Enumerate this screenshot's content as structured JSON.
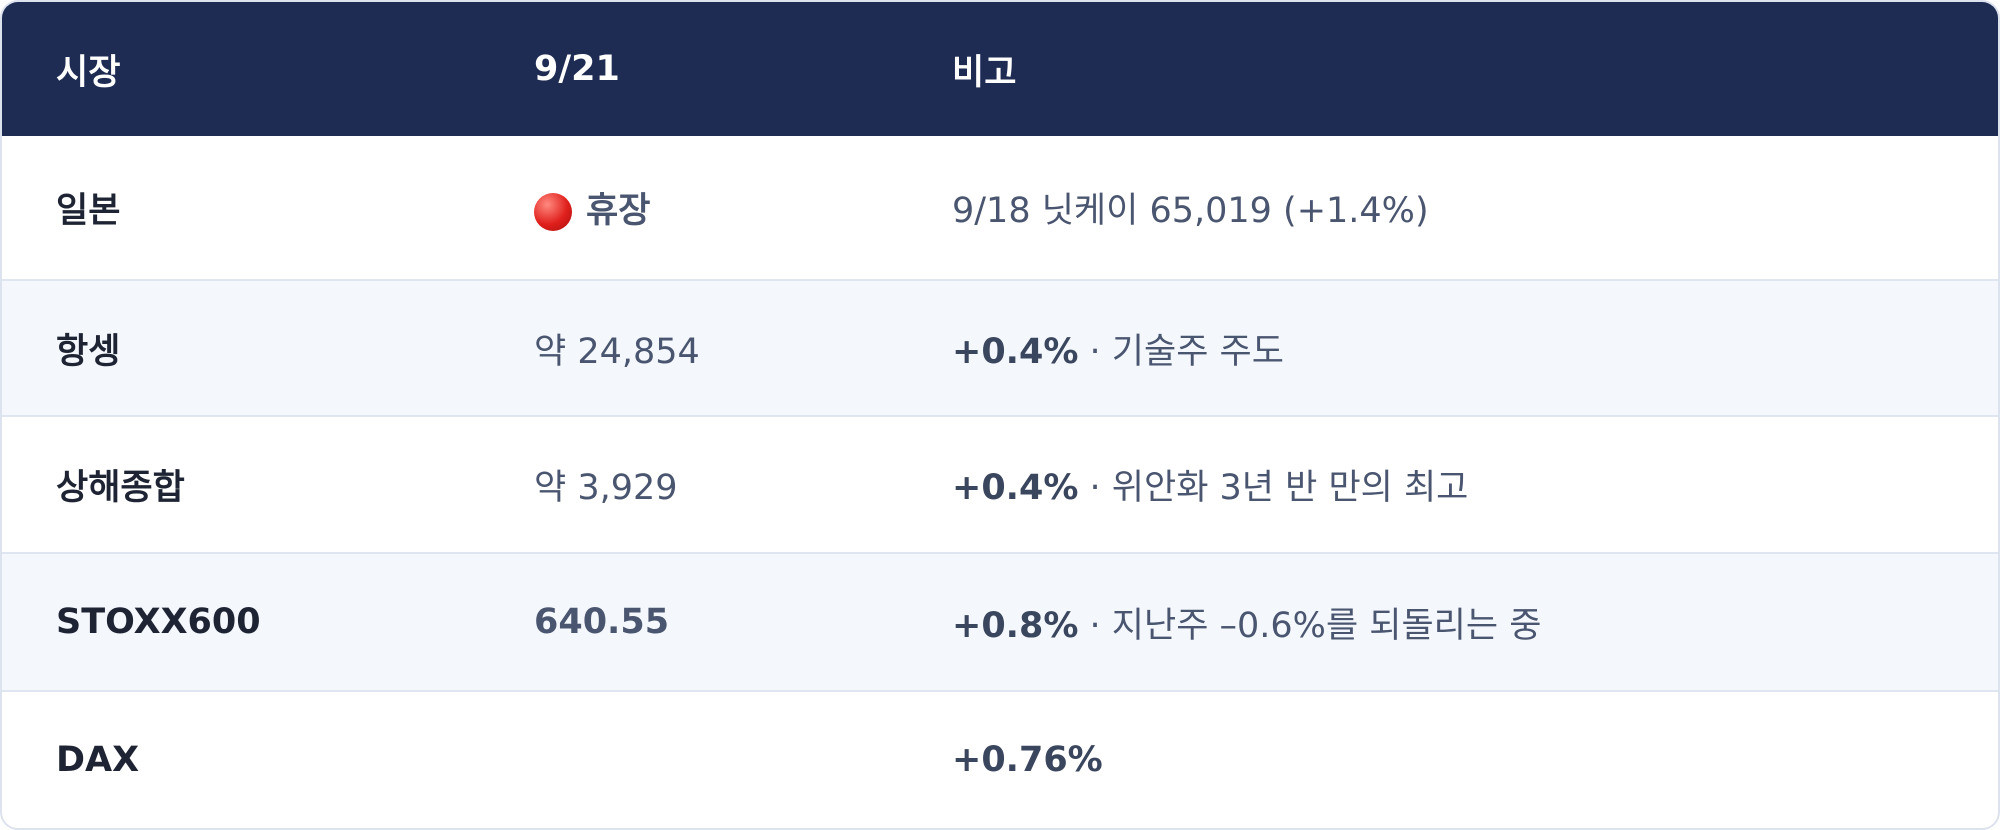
{
  "table": {
    "header": [
      "시장",
      "9/21",
      "비고"
    ],
    "rows": [
      {
        "market": "일본",
        "value": "휴장",
        "note": "9/18 닛케이 65,019 (+1.4%)"
      },
      {
        "market": "항셍",
        "value": "약 24,854",
        "change": "+0.4%",
        "note": "· 기술주 주도"
      },
      {
        "market": "상해종합",
        "value": "약 3,929",
        "change": "+0.4%",
        "note": "· 위안화 3년 반 만의 최고"
      },
      {
        "market": "STOXX600",
        "value": "640.55",
        "change": "+0.8%",
        "note": "· 지난주 –0.6%를 되돌리는 중"
      },
      {
        "market": "DAX",
        "change": "+0.76%"
      }
    ]
  }
}
